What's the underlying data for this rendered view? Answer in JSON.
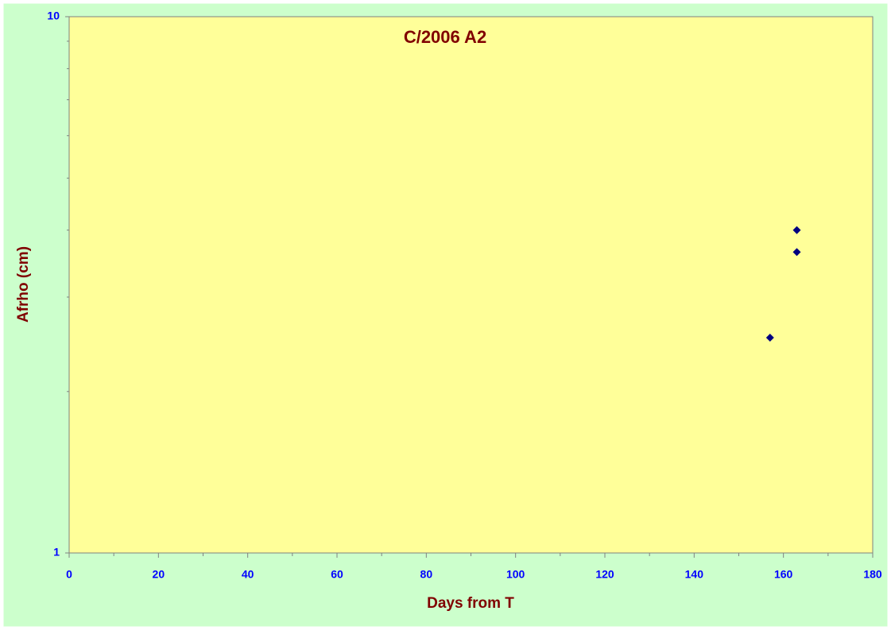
{
  "chart_data": {
    "type": "scatter",
    "title": "C/2006 A2",
    "x_label": "Days from T",
    "y_label": "Afrho (cm)",
    "series": [
      {
        "x": [
          157,
          163,
          163
        ],
        "values": [
          2.52,
          4.0,
          3.64
        ],
        "color": "#000080"
      }
    ],
    "xlim": [
      0,
      180
    ],
    "xticks": [
      0,
      20,
      40,
      60,
      80,
      100,
      120,
      140,
      160,
      180
    ],
    "ylim": [
      1,
      10
    ],
    "yticks": [
      1,
      10
    ],
    "log_y": true,
    "grid": false,
    "plot_color": "#FFFF99",
    "background": "#CCFFCC",
    "title_color": "#800000",
    "tick_color": "#0000FF"
  }
}
